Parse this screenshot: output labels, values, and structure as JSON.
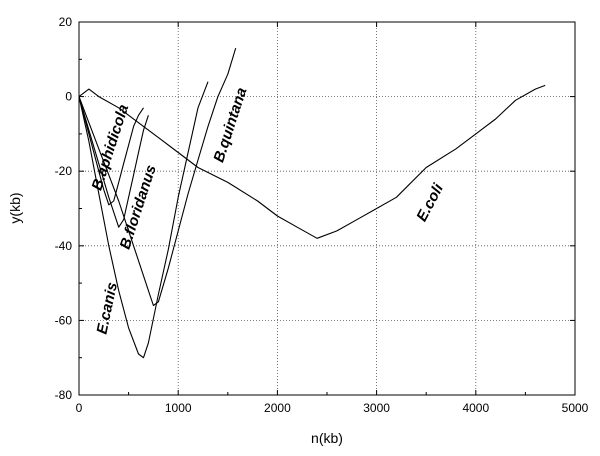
{
  "chart_data": {
    "type": "line",
    "title": "",
    "xlabel": "n(kb)",
    "ylabel": "y(kb)",
    "xlim": [
      0,
      5000
    ],
    "ylim": [
      -80,
      20
    ],
    "x_ticks": [
      0,
      1000,
      2000,
      3000,
      4000,
      5000
    ],
    "y_ticks": [
      -80,
      -60,
      -40,
      -20,
      0,
      20
    ],
    "grid": "dotted",
    "legend": "none",
    "line_color": "#000000",
    "series": [
      {
        "name": "E.coli",
        "x": [
          0,
          100,
          200,
          400,
          600,
          800,
          1000,
          1200,
          1500,
          1800,
          2000,
          2200,
          2400,
          2600,
          2800,
          3000,
          3200,
          3500,
          3800,
          4000,
          4200,
          4400,
          4600,
          4700
        ],
        "y": [
          0,
          2,
          0,
          -3,
          -7,
          -11,
          -15,
          -19,
          -23,
          -28,
          -32,
          -35,
          -38,
          -36,
          -33,
          -30,
          -27,
          -19,
          -14,
          -10,
          -6,
          -1,
          2,
          3
        ]
      },
      {
        "name": "E.canis",
        "x": [
          0,
          100,
          200,
          300,
          400,
          500,
          600,
          650,
          700,
          800,
          900,
          1000,
          1100,
          1200,
          1300
        ],
        "y": [
          0,
          -12,
          -26,
          -40,
          -52,
          -62,
          -69,
          -70,
          -66,
          -53,
          -41,
          -27,
          -15,
          -3,
          4
        ]
      },
      {
        "name": "B.aphidicola",
        "x": [
          0,
          100,
          200,
          250,
          300,
          350,
          400,
          450,
          500,
          550,
          600,
          650
        ],
        "y": [
          0,
          -10,
          -20,
          -25,
          -29,
          -28,
          -23,
          -18,
          -13,
          -8,
          -5,
          -3
        ]
      },
      {
        "name": "B.floridanus",
        "x": [
          0,
          100,
          200,
          300,
          400,
          450,
          500,
          550,
          600,
          650,
          700
        ],
        "y": [
          0,
          -9,
          -18,
          -27,
          -35,
          -33,
          -27,
          -21,
          -15,
          -9,
          -5
        ]
      },
      {
        "name": "B.quintana",
        "x": [
          0,
          100,
          200,
          300,
          400,
          500,
          600,
          700,
          750,
          800,
          900,
          1000,
          1100,
          1200,
          1300,
          1400,
          1500,
          1580
        ],
        "y": [
          0,
          -7,
          -14,
          -21,
          -28,
          -36,
          -44,
          -52,
          -56,
          -55,
          -46,
          -36,
          -26,
          -17,
          -8,
          0,
          6,
          13
        ]
      }
    ],
    "annotations": [
      {
        "text": "E.coli",
        "x": 3580,
        "y": -29
      },
      {
        "text": "E.canis",
        "x": 330,
        "y": -57
      },
      {
        "text": "B.aphidicola",
        "x": 360,
        "y": -14
      },
      {
        "text": "B.floridanus",
        "x": 640,
        "y": -30
      },
      {
        "text": "B.quintana",
        "x": 1570,
        "y": -8
      }
    ]
  }
}
